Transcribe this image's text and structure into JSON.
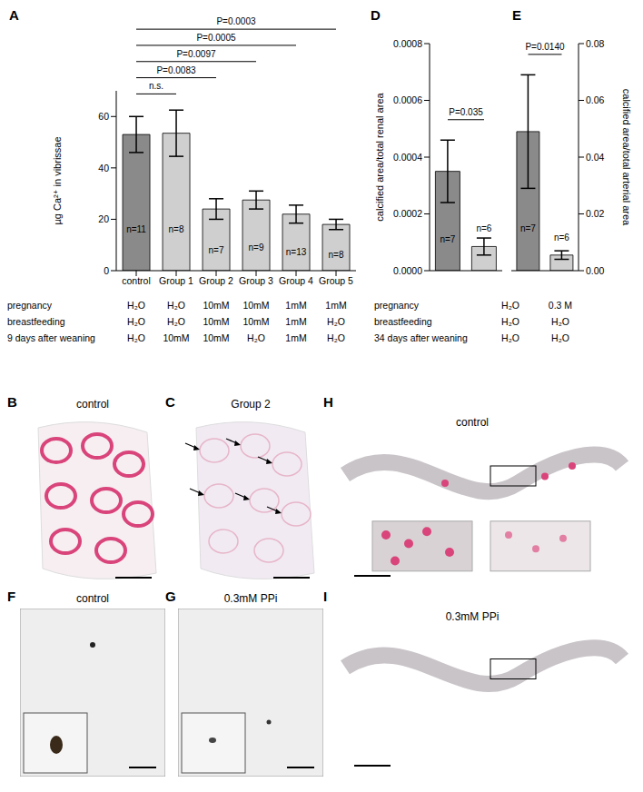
{
  "chart_data": [
    {
      "panel": "A",
      "type": "bar",
      "categories": [
        "control",
        "Group 1",
        "Group 2",
        "Group 3",
        "Group 4",
        "Group 5"
      ],
      "values": [
        53,
        53.5,
        24,
        27.5,
        22,
        18
      ],
      "errors": [
        7,
        9,
        4,
        3.5,
        3.5,
        2
      ],
      "n_labels": [
        "n=11",
        "n=8",
        "n=7",
        "n=9",
        "n=13",
        "n=8"
      ],
      "colors": [
        "#8a8a8a",
        "#cfcfcf",
        "#cfcfcf",
        "#cfcfcf",
        "#cfcfcf",
        "#cfcfcf"
      ],
      "ylabel": "µg Ca²⁺ in vibrissae",
      "ylim": [
        0,
        70
      ],
      "yticks": [
        0,
        20,
        40,
        60
      ],
      "comparisons": [
        {
          "between": [
            0,
            1
          ],
          "label": "n.s."
        },
        {
          "between": [
            0,
            2
          ],
          "label": "P=0.0083"
        },
        {
          "between": [
            0,
            3
          ],
          "label": "P=0.0097"
        },
        {
          "between": [
            0,
            4
          ],
          "label": "P=0.0005"
        },
        {
          "between": [
            0,
            5
          ],
          "label": "P=0.0003"
        }
      ],
      "treatments": {
        "rows": [
          {
            "label": "pregnancy",
            "cells": [
              "H₂O",
              "H₂O",
              "10mM",
              "10mM",
              "1mM",
              "1mM"
            ]
          },
          {
            "label": "breastfeeding",
            "cells": [
              "H₂O",
              "H₂O",
              "10mM",
              "10mM",
              "1mM",
              "H₂O"
            ]
          },
          {
            "label": "9 days after weaning",
            "cells": [
              "H₂O",
              "10mM",
              "10mM",
              "H₂O",
              "1mM",
              "H₂O"
            ]
          }
        ]
      }
    },
    {
      "panel": "D",
      "type": "bar",
      "tick_labels": "y",
      "categories": [
        null,
        null
      ],
      "values": [
        0.00035,
        8.5e-05
      ],
      "errors": [
        0.00011,
        3e-05
      ],
      "n_labels": [
        "n=7",
        "n=6"
      ],
      "colors": [
        "#8a8a8a",
        "#cfcfcf"
      ],
      "ylabel": "calcified area/total renal area",
      "ylim": [
        0,
        0.0008
      ],
      "yticks": [
        {
          "value": 0,
          "label": "0.0000"
        },
        {
          "value": 0.0002,
          "label": "0.0002"
        },
        {
          "value": 0.0004,
          "label": "0.0004"
        },
        {
          "value": 0.0006,
          "label": "0.0006"
        },
        {
          "value": 0.0008,
          "label": "0.0008"
        }
      ],
      "comparisons": [
        {
          "between": [
            0,
            1
          ],
          "label": "P=0.035"
        }
      ],
      "treatments": {
        "rows": [
          {
            "label": "pregnancy",
            "cells": [
              "H₂O",
              "0.3 M"
            ]
          },
          {
            "label": "breastfeeding",
            "cells": [
              "H₂O",
              "H₂O"
            ]
          },
          {
            "label": "34 days after weaning",
            "cells": [
              "H₂O",
              "H₂O"
            ]
          }
        ]
      }
    },
    {
      "panel": "E",
      "type": "bar",
      "tick_labels": "y",
      "categories": [
        null,
        null
      ],
      "values": [
        0.049,
        0.0055
      ],
      "errors": [
        0.02,
        0.0015
      ],
      "n_labels": [
        "n=7",
        "n=6"
      ],
      "colors": [
        "#8a8a8a",
        "#cfcfcf"
      ],
      "ylabel": "calcified area/total arterial area",
      "ylim": [
        0,
        0.08
      ],
      "yticks": [
        {
          "value": 0,
          "label": "0.00"
        },
        {
          "value": 0.02,
          "label": "0.02"
        },
        {
          "value": 0.04,
          "label": "0.04"
        },
        {
          "value": 0.06,
          "label": "0.06"
        },
        {
          "value": 0.08,
          "label": "0.08"
        }
      ],
      "comparisons": [
        {
          "between": [
            0,
            1
          ],
          "label": "P=0.0140"
        }
      ]
    }
  ],
  "images": [
    {
      "panel": "B",
      "label": "control"
    },
    {
      "panel": "C",
      "label": "Group 2"
    },
    {
      "panel": "F",
      "label": "control"
    },
    {
      "panel": "G",
      "label": "0.3mM PPi"
    },
    {
      "panel": "H",
      "label": "control"
    },
    {
      "panel": "I",
      "label": "0.3mM PPi"
    }
  ]
}
